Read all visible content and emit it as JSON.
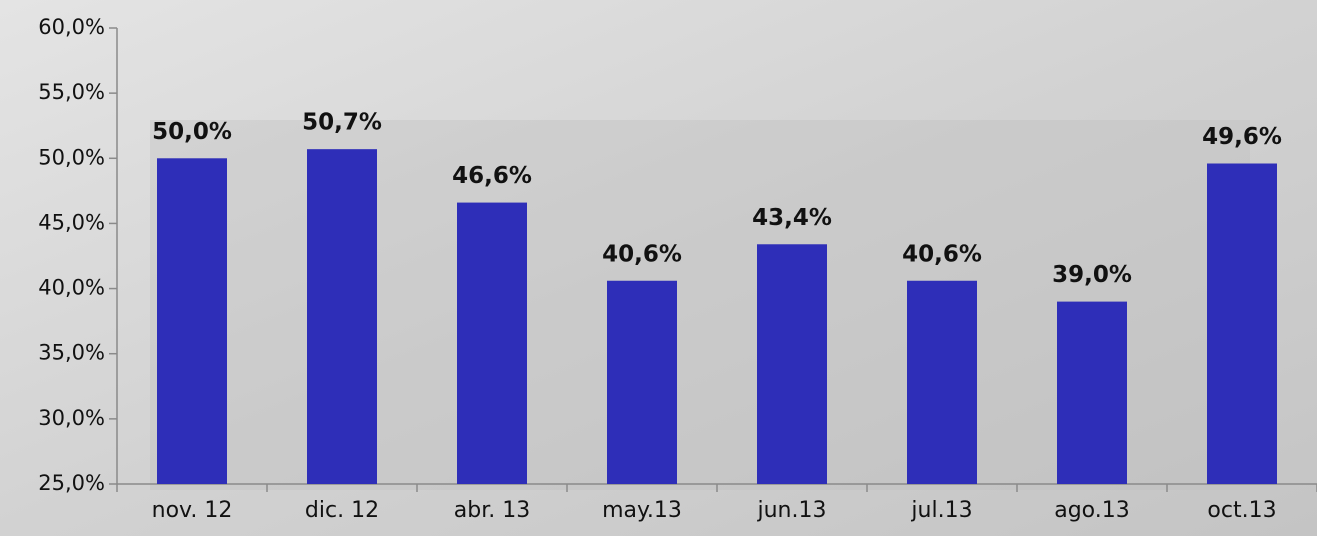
{
  "chart_data": {
    "type": "bar",
    "categories": [
      "nov. 12",
      "dic. 12",
      "abr. 13",
      "may.13",
      "jun.13",
      "jul.13",
      "ago.13",
      "oct.13"
    ],
    "values": [
      50.0,
      50.7,
      46.6,
      40.6,
      43.4,
      40.6,
      39.0,
      49.6
    ],
    "value_labels": [
      "50,0%",
      "50,7%",
      "46,6%",
      "40,6%",
      "43,4%",
      "40,6%",
      "39,0%",
      "49,6%"
    ],
    "color": "#2e2eb8",
    "ylim": [
      25,
      60
    ],
    "yticks": [
      {
        "value": 25,
        "label": "25,0%"
      },
      {
        "value": 30,
        "label": "30,0%"
      },
      {
        "value": 35,
        "label": "35,0%"
      },
      {
        "value": 40,
        "label": "40,0%"
      },
      {
        "value": 45,
        "label": "45,0%"
      },
      {
        "value": 50,
        "label": "50,0%"
      },
      {
        "value": 55,
        "label": "55,0%"
      },
      {
        "value": 60,
        "label": "60,0%"
      }
    ],
    "grid": false
  }
}
